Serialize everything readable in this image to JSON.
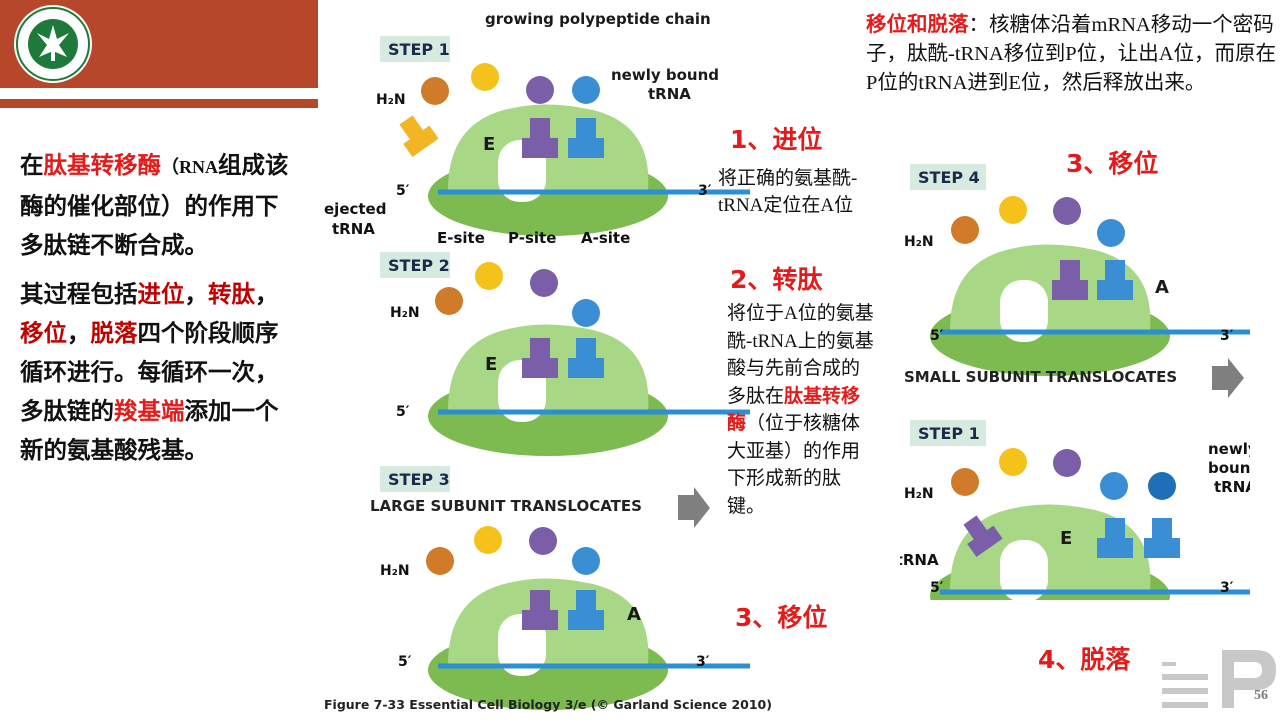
{
  "header": {
    "brand_color": "#b7472a"
  },
  "left_text": {
    "p1_a": "在",
    "p1_red": "肽基转移酶",
    "p1_b": "（",
    "p1_rna": "RNA",
    "p1_c": "组成该酶的催化部位）的作用下多肽链不断合成。",
    "p2_a": "其过程包括",
    "p2_r1": "进位",
    "p2_s1": "，",
    "p2_r2": "转肽",
    "p2_s2": "，",
    "p2_r3": "移位",
    "p2_s3": "，",
    "p2_r4": "脱落",
    "p2_b": "四个阶段顺序循环进行。每循环一次，多肽链的",
    "p2_r5": "羧基端",
    "p2_c": "添加一个新的氨基酸残基。"
  },
  "figure": {
    "step1": "STEP 1",
    "step2": "STEP 2",
    "step3": "STEP 3",
    "step4": "STEP 4",
    "step1b": "STEP 1",
    "growing": "growing polypeptide chain",
    "newly_bound": "newly bound",
    "trna": "tRNA",
    "ejected": "ejected",
    "ejected_trna": "ejected tRNA",
    "e_site": "E-site",
    "p_site": "P-site",
    "a_site": "A-site",
    "large_sub": "LARGE SUBUNIT TRANSLOCATES",
    "small_sub": "SMALL SUBUNIT TRANSLOCATES",
    "newly": "newly-",
    "bound": "bound",
    "h2n": "H₂N",
    "five": "5′",
    "three": "3′",
    "E": "E",
    "A": "A",
    "caption": "Figure 7-33  Essential Cell Biology 3/e (© Garland Science 2010)"
  },
  "notes": {
    "top_red": "移位和脱落",
    "top_body": "：核糖体沿着mRNA移动一个密码子，肽酰-tRNA移位到P位，让出A位，而原在P位的tRNA进到E位，然后释放出来。",
    "n1_head": "1、进位",
    "n1_body": "将正确的氨基酰-tRNA定位在A位",
    "n2_head": "2、转肽",
    "n2_body_a": "将位于A位的氨基酰-tRNA上的氨基酸与先前合成的多肽在",
    "n2_red": "肽基转移酶",
    "n2_body_b": "（位于核糖体大亚基）的作用下形成新的肽键。",
    "n3_head": "3、移位",
    "n3_head_b": "3、移位",
    "n4_head": "4、脱落"
  },
  "page_number": "56"
}
